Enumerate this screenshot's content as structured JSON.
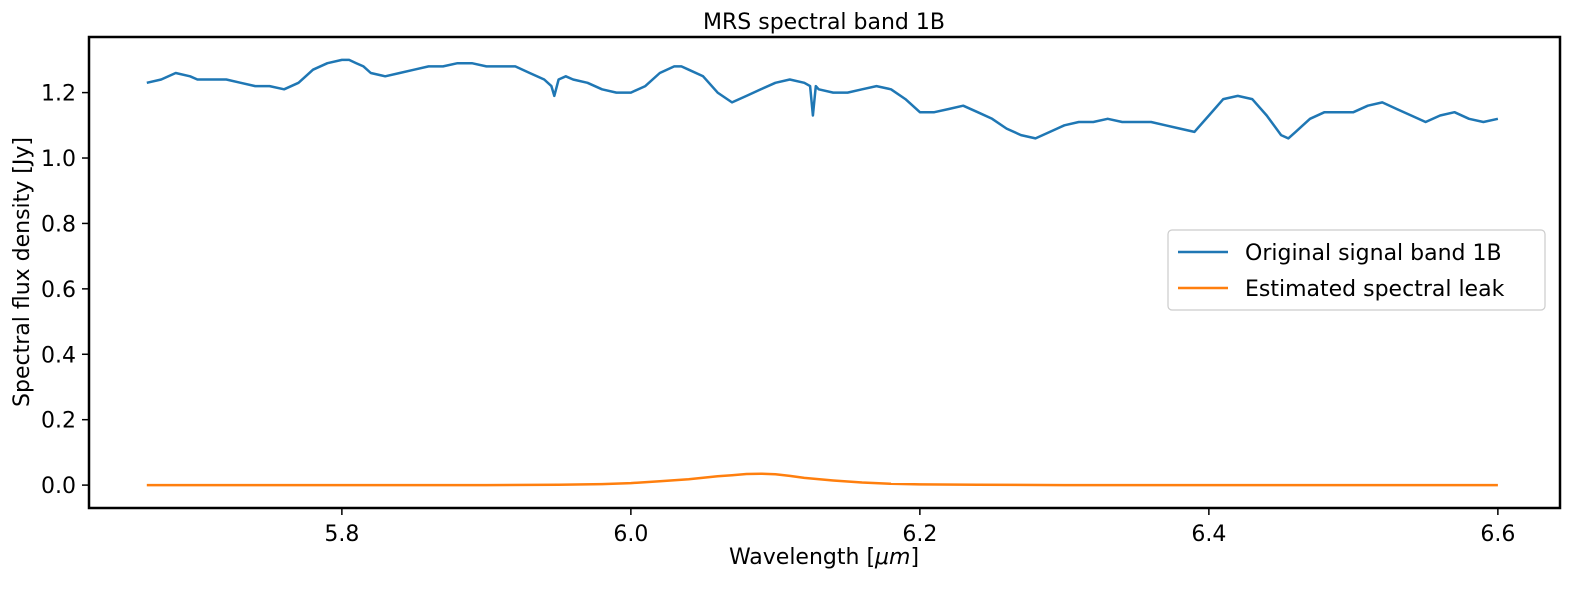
{
  "chart_data": {
    "type": "line",
    "title": "MRS spectral band 1B",
    "xlabel_prefix": "Wavelength [",
    "xlabel_unit": "μm",
    "xlabel_suffix": "]",
    "ylabel": "Spectral flux density [Jy]",
    "xlim": [
      5.625,
      6.643
    ],
    "ylim": [
      -0.07,
      1.37
    ],
    "x_ticks": [
      5.8,
      6.0,
      6.2,
      6.4,
      6.6
    ],
    "x_tick_labels": [
      "5.8",
      "6.0",
      "6.2",
      "6.4",
      "6.6"
    ],
    "y_ticks": [
      0.0,
      0.2,
      0.4,
      0.6,
      0.8,
      1.0,
      1.2
    ],
    "y_tick_labels": [
      "0.0",
      "0.2",
      "0.4",
      "0.6",
      "0.8",
      "1.0",
      "1.2"
    ],
    "grid": false,
    "legend_position": "center-right",
    "series": [
      {
        "name": "Original signal band 1B",
        "color": "#1f77b4",
        "x": [
          5.665,
          5.675,
          5.685,
          5.695,
          5.7,
          5.71,
          5.72,
          5.73,
          5.74,
          5.75,
          5.76,
          5.77,
          5.775,
          5.78,
          5.79,
          5.8,
          5.805,
          5.81,
          5.815,
          5.82,
          5.83,
          5.84,
          5.85,
          5.86,
          5.87,
          5.88,
          5.89,
          5.9,
          5.91,
          5.92,
          5.93,
          5.94,
          5.945,
          5.947,
          5.95,
          5.955,
          5.96,
          5.97,
          5.98,
          5.99,
          6.0,
          6.01,
          6.02,
          6.03,
          6.035,
          6.04,
          6.05,
          6.06,
          6.07,
          6.08,
          6.09,
          6.1,
          6.11,
          6.12,
          6.124,
          6.126,
          6.128,
          6.13,
          6.14,
          6.15,
          6.16,
          6.17,
          6.18,
          6.19,
          6.2,
          6.21,
          6.22,
          6.23,
          6.24,
          6.25,
          6.26,
          6.27,
          6.28,
          6.29,
          6.3,
          6.31,
          6.32,
          6.33,
          6.34,
          6.35,
          6.36,
          6.37,
          6.38,
          6.39,
          6.4,
          6.41,
          6.42,
          6.43,
          6.44,
          6.45,
          6.455,
          6.46,
          6.47,
          6.48,
          6.49,
          6.5,
          6.51,
          6.52,
          6.53,
          6.54,
          6.55,
          6.56,
          6.57,
          6.58,
          6.59,
          6.6
        ],
        "y": [
          1.23,
          1.24,
          1.26,
          1.25,
          1.24,
          1.24,
          1.24,
          1.23,
          1.22,
          1.22,
          1.21,
          1.23,
          1.25,
          1.27,
          1.29,
          1.3,
          1.3,
          1.29,
          1.28,
          1.26,
          1.25,
          1.26,
          1.27,
          1.28,
          1.28,
          1.29,
          1.29,
          1.28,
          1.28,
          1.28,
          1.26,
          1.24,
          1.22,
          1.19,
          1.24,
          1.25,
          1.24,
          1.23,
          1.21,
          1.2,
          1.2,
          1.22,
          1.26,
          1.28,
          1.28,
          1.27,
          1.25,
          1.2,
          1.17,
          1.19,
          1.21,
          1.23,
          1.24,
          1.23,
          1.22,
          1.13,
          1.22,
          1.21,
          1.2,
          1.2,
          1.21,
          1.22,
          1.21,
          1.18,
          1.14,
          1.14,
          1.15,
          1.16,
          1.14,
          1.12,
          1.09,
          1.07,
          1.06,
          1.08,
          1.1,
          1.11,
          1.11,
          1.12,
          1.11,
          1.11,
          1.11,
          1.1,
          1.09,
          1.08,
          1.13,
          1.18,
          1.19,
          1.18,
          1.13,
          1.07,
          1.06,
          1.08,
          1.12,
          1.14,
          1.14,
          1.14,
          1.16,
          1.17,
          1.15,
          1.13,
          1.11,
          1.13,
          1.14,
          1.12,
          1.11,
          1.12
        ]
      },
      {
        "name": "Estimated spectral leak",
        "color": "#ff7f0e",
        "x": [
          5.665,
          5.8,
          5.9,
          5.95,
          5.98,
          6.0,
          6.02,
          6.04,
          6.06,
          6.07,
          6.08,
          6.09,
          6.1,
          6.11,
          6.12,
          6.14,
          6.16,
          6.18,
          6.2,
          6.24,
          6.3,
          6.4,
          6.5,
          6.6
        ],
        "y": [
          0.0,
          0.0,
          0.0,
          0.001,
          0.003,
          0.006,
          0.012,
          0.018,
          0.027,
          0.03,
          0.034,
          0.035,
          0.033,
          0.028,
          0.022,
          0.014,
          0.008,
          0.004,
          0.002,
          0.001,
          0.0,
          0.0,
          0.0,
          0.0
        ]
      }
    ]
  }
}
